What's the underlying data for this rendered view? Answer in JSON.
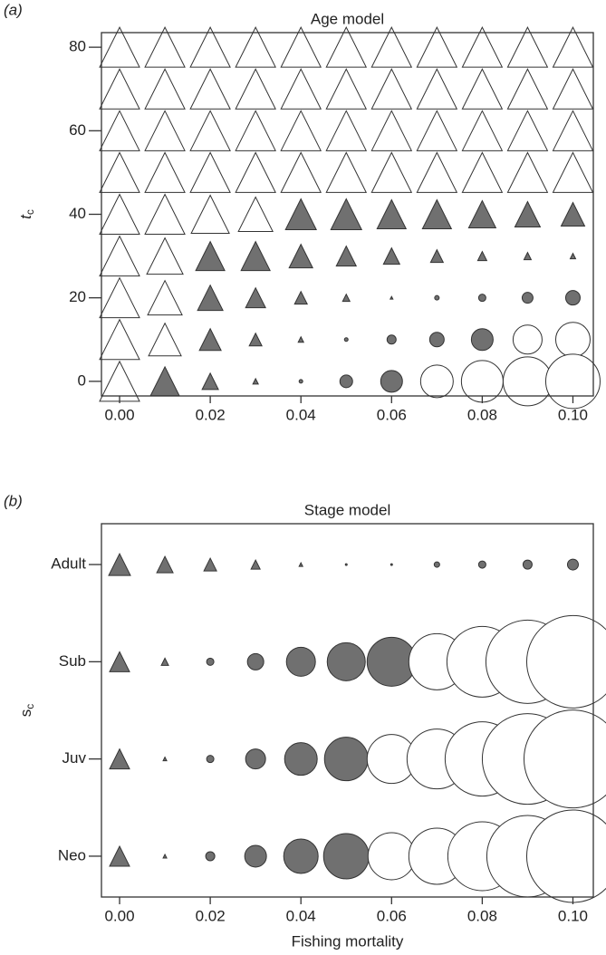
{
  "chart_data": [
    {
      "type": "symbol-grid",
      "panel": "(a)",
      "title": "Age model",
      "ylabel": "t",
      "ylabel_sub": "c",
      "xlim": [
        -0.004,
        0.1045
      ],
      "ylim": [
        -3.5,
        83.5
      ],
      "xticks": [
        {
          "value": 0,
          "label": "0.00"
        },
        {
          "value": 0.02,
          "label": "0.02"
        },
        {
          "value": 0.04,
          "label": "0.04"
        },
        {
          "value": 0.06,
          "label": "0.06"
        },
        {
          "value": 0.08,
          "label": "0.08"
        },
        {
          "value": 0.1,
          "label": "0.10"
        }
      ],
      "yticks": [
        0,
        20,
        40,
        60,
        80
      ],
      "x": [
        0,
        0.01,
        0.02,
        0.03,
        0.04,
        0.05,
        0.06,
        0.07,
        0.08,
        0.09,
        0.1
      ],
      "rows": [
        {
          "y": 80,
          "sizes": [
            22,
            22,
            22,
            22,
            22,
            22,
            22,
            22,
            22,
            22,
            22
          ],
          "shapes": [
            "triangle",
            "triangle",
            "triangle",
            "triangle",
            "triangle",
            "triangle",
            "triangle",
            "triangle",
            "triangle",
            "triangle",
            "triangle"
          ],
          "fills": [
            "#ffffff",
            "#ffffff",
            "#ffffff",
            "#ffffff",
            "#ffffff",
            "#ffffff",
            "#ffffff",
            "#ffffff",
            "#ffffff",
            "#ffffff",
            "#ffffff"
          ]
        },
        {
          "y": 70,
          "sizes": [
            22,
            22,
            22,
            22,
            22,
            22,
            22,
            22,
            22,
            22,
            22
          ],
          "shapes": [
            "triangle",
            "triangle",
            "triangle",
            "triangle",
            "triangle",
            "triangle",
            "triangle",
            "triangle",
            "triangle",
            "triangle",
            "triangle"
          ],
          "fills": [
            "#ffffff",
            "#ffffff",
            "#ffffff",
            "#ffffff",
            "#ffffff",
            "#ffffff",
            "#ffffff",
            "#ffffff",
            "#ffffff",
            "#ffffff",
            "#ffffff"
          ]
        },
        {
          "y": 60,
          "sizes": [
            22,
            22,
            22,
            22,
            22,
            22,
            22,
            22,
            22,
            22,
            22
          ],
          "shapes": [
            "triangle",
            "triangle",
            "triangle",
            "triangle",
            "triangle",
            "triangle",
            "triangle",
            "triangle",
            "triangle",
            "triangle",
            "triangle"
          ],
          "fills": [
            "#ffffff",
            "#ffffff",
            "#ffffff",
            "#ffffff",
            "#ffffff",
            "#ffffff",
            "#ffffff",
            "#ffffff",
            "#ffffff",
            "#ffffff",
            "#ffffff"
          ]
        },
        {
          "y": 50,
          "sizes": [
            22,
            22,
            22,
            22,
            22,
            22,
            22,
            22,
            22,
            22,
            22
          ],
          "shapes": [
            "triangle",
            "triangle",
            "triangle",
            "triangle",
            "triangle",
            "triangle",
            "triangle",
            "triangle",
            "triangle",
            "triangle",
            "triangle"
          ],
          "fills": [
            "#ffffff",
            "#ffffff",
            "#ffffff",
            "#ffffff",
            "#ffffff",
            "#ffffff",
            "#ffffff",
            "#ffffff",
            "#ffffff",
            "#ffffff",
            "#ffffff"
          ]
        },
        {
          "y": 40,
          "sizes": [
            22,
            22,
            21,
            19,
            17,
            17,
            16,
            16,
            15,
            14,
            13
          ],
          "shapes": [
            "triangle",
            "triangle",
            "triangle",
            "triangle",
            "triangle",
            "triangle",
            "triangle",
            "triangle",
            "triangle",
            "triangle",
            "triangle"
          ],
          "fills": [
            "#ffffff",
            "#ffffff",
            "#ffffff",
            "#ffffff",
            "#707070",
            "#707070",
            "#707070",
            "#707070",
            "#707070",
            "#707070",
            "#707070"
          ]
        },
        {
          "y": 30,
          "sizes": [
            22,
            20,
            16,
            16,
            13,
            11,
            9,
            7,
            5,
            4,
            3
          ],
          "shapes": [
            "triangle",
            "triangle",
            "triangle",
            "triangle",
            "triangle",
            "triangle",
            "triangle",
            "triangle",
            "triangle",
            "triangle",
            "triangle"
          ],
          "fills": [
            "#ffffff",
            "#ffffff",
            "#707070",
            "#707070",
            "#707070",
            "#707070",
            "#707070",
            "#707070",
            "#707070",
            "#707070",
            "#707070"
          ]
        },
        {
          "y": 20,
          "sizes": [
            22,
            19,
            14,
            11,
            7,
            4,
            1.5,
            2.5,
            4,
            6,
            8
          ],
          "shapes": [
            "triangle",
            "triangle",
            "triangle",
            "triangle",
            "triangle",
            "triangle",
            "triangle",
            "circle",
            "circle",
            "circle",
            "circle"
          ],
          "fills": [
            "#ffffff",
            "#ffffff",
            "#707070",
            "#707070",
            "#707070",
            "#707070",
            "#707070",
            "#707070",
            "#707070",
            "#707070",
            "#707070"
          ]
        },
        {
          "y": 10,
          "sizes": [
            22,
            18,
            12,
            7,
            3,
            2,
            5,
            8,
            12,
            16,
            19
          ],
          "shapes": [
            "triangle",
            "triangle",
            "triangle",
            "triangle",
            "triangle",
            "circle",
            "circle",
            "circle",
            "circle",
            "circle",
            "circle"
          ],
          "fills": [
            "#ffffff",
            "#ffffff",
            "#707070",
            "#707070",
            "#707070",
            "#707070",
            "#707070",
            "#707070",
            "#707070",
            "#ffffff",
            "#ffffff"
          ]
        },
        {
          "y": 0,
          "sizes": [
            22,
            16,
            9,
            3,
            2,
            7,
            12,
            18,
            23,
            27,
            30
          ],
          "shapes": [
            "triangle",
            "triangle",
            "triangle",
            "triangle",
            "circle",
            "circle",
            "circle",
            "circle",
            "circle",
            "circle",
            "circle"
          ],
          "fills": [
            "#ffffff",
            "#707070",
            "#707070",
            "#707070",
            "#707070",
            "#707070",
            "#707070",
            "#ffffff",
            "#ffffff",
            "#ffffff",
            "#ffffff"
          ]
        }
      ]
    },
    {
      "type": "symbol-grid",
      "panel": "(b)",
      "title": "Stage model",
      "ylabel": "s",
      "ylabel_sub": "c",
      "xlabel": "Fishing mortality",
      "xlim": [
        -0.004,
        0.1045
      ],
      "y_categories": [
        "Neo",
        "Juv",
        "Sub",
        "Adult"
      ],
      "xticks": [
        {
          "value": 0,
          "label": "0.00"
        },
        {
          "value": 0.02,
          "label": "0.02"
        },
        {
          "value": 0.04,
          "label": "0.04"
        },
        {
          "value": 0.06,
          "label": "0.06"
        },
        {
          "value": 0.08,
          "label": "0.08"
        },
        {
          "value": 0.1,
          "label": "0.10"
        }
      ],
      "x": [
        0,
        0.01,
        0.02,
        0.03,
        0.04,
        0.05,
        0.06,
        0.07,
        0.08,
        0.09,
        0.1
      ],
      "rows": [
        {
          "y": "Adult",
          "sizes": [
            12,
            9,
            7,
            5,
            2,
            1,
            1,
            3,
            4,
            5,
            6
          ],
          "shapes": [
            "triangle",
            "triangle",
            "triangle",
            "triangle",
            "triangle",
            "circle",
            "circle",
            "circle",
            "circle",
            "circle",
            "circle"
          ],
          "fills": [
            "#707070",
            "#707070",
            "#707070",
            "#707070",
            "#707070",
            "#707070",
            "#707070",
            "#707070",
            "#707070",
            "#707070",
            "#707070"
          ]
        },
        {
          "y": "Sub",
          "sizes": [
            11,
            4,
            4,
            9,
            16,
            21,
            27,
            31,
            39,
            46,
            51
          ],
          "shapes": [
            "triangle",
            "triangle",
            "circle",
            "circle",
            "circle",
            "circle",
            "circle",
            "circle",
            "circle",
            "circle",
            "circle"
          ],
          "fills": [
            "#707070",
            "#707070",
            "#707070",
            "#707070",
            "#707070",
            "#707070",
            "#707070",
            "#ffffff",
            "#ffffff",
            "#ffffff",
            "#ffffff"
          ]
        },
        {
          "y": "Juv",
          "sizes": [
            11,
            2,
            4,
            11,
            18,
            24,
            27,
            33,
            41,
            50,
            54
          ],
          "shapes": [
            "triangle",
            "triangle",
            "circle",
            "circle",
            "circle",
            "circle",
            "circle",
            "circle",
            "circle",
            "circle",
            "circle"
          ],
          "fills": [
            "#707070",
            "#707070",
            "#707070",
            "#707070",
            "#707070",
            "#707070",
            "#ffffff",
            "#ffffff",
            "#ffffff",
            "#ffffff",
            "#ffffff"
          ]
        },
        {
          "y": "Neo",
          "sizes": [
            11,
            2,
            5,
            12,
            19,
            25,
            26,
            31,
            38,
            45,
            51
          ],
          "shapes": [
            "triangle",
            "triangle",
            "circle",
            "circle",
            "circle",
            "circle",
            "circle",
            "circle",
            "circle",
            "circle",
            "circle"
          ],
          "fills": [
            "#707070",
            "#707070",
            "#707070",
            "#707070",
            "#707070",
            "#707070",
            "#ffffff",
            "#ffffff",
            "#ffffff",
            "#ffffff",
            "#ffffff"
          ]
        }
      ]
    }
  ]
}
